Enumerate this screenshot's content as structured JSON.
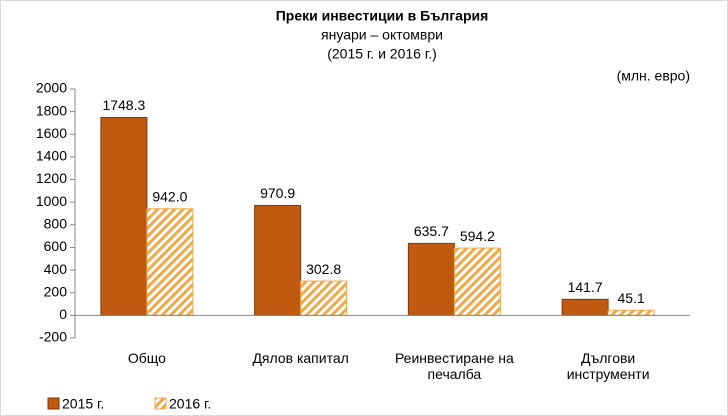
{
  "chart_data": {
    "type": "bar",
    "title": "Преки  инвестиции в България",
    "subtitle": "януари – октомври",
    "subtitle2": "(2015 г. и 2016 г.)",
    "unit_label": "(млн. евро)",
    "categories": [
      "Общо",
      "Дялов капитал",
      "Реинвестиране на печалба",
      "Дългови инструменти"
    ],
    "series": [
      {
        "name": "2015 г.",
        "color": "#c05a10",
        "values": [
          1748.3,
          970.9,
          635.7,
          141.7
        ]
      },
      {
        "name": "2016 г.",
        "color": "#f0a848",
        "hatched": true,
        "values": [
          942.0,
          302.8,
          594.2,
          45.1
        ],
        "value_labels": [
          "942.0",
          "302.8",
          "594.2",
          "45.1"
        ]
      }
    ],
    "ylim": [
      -200,
      2000
    ],
    "yticks": [
      -200,
      0,
      200,
      400,
      600,
      800,
      1000,
      1200,
      1400,
      1600,
      1800,
      2000
    ],
    "grid": false
  }
}
